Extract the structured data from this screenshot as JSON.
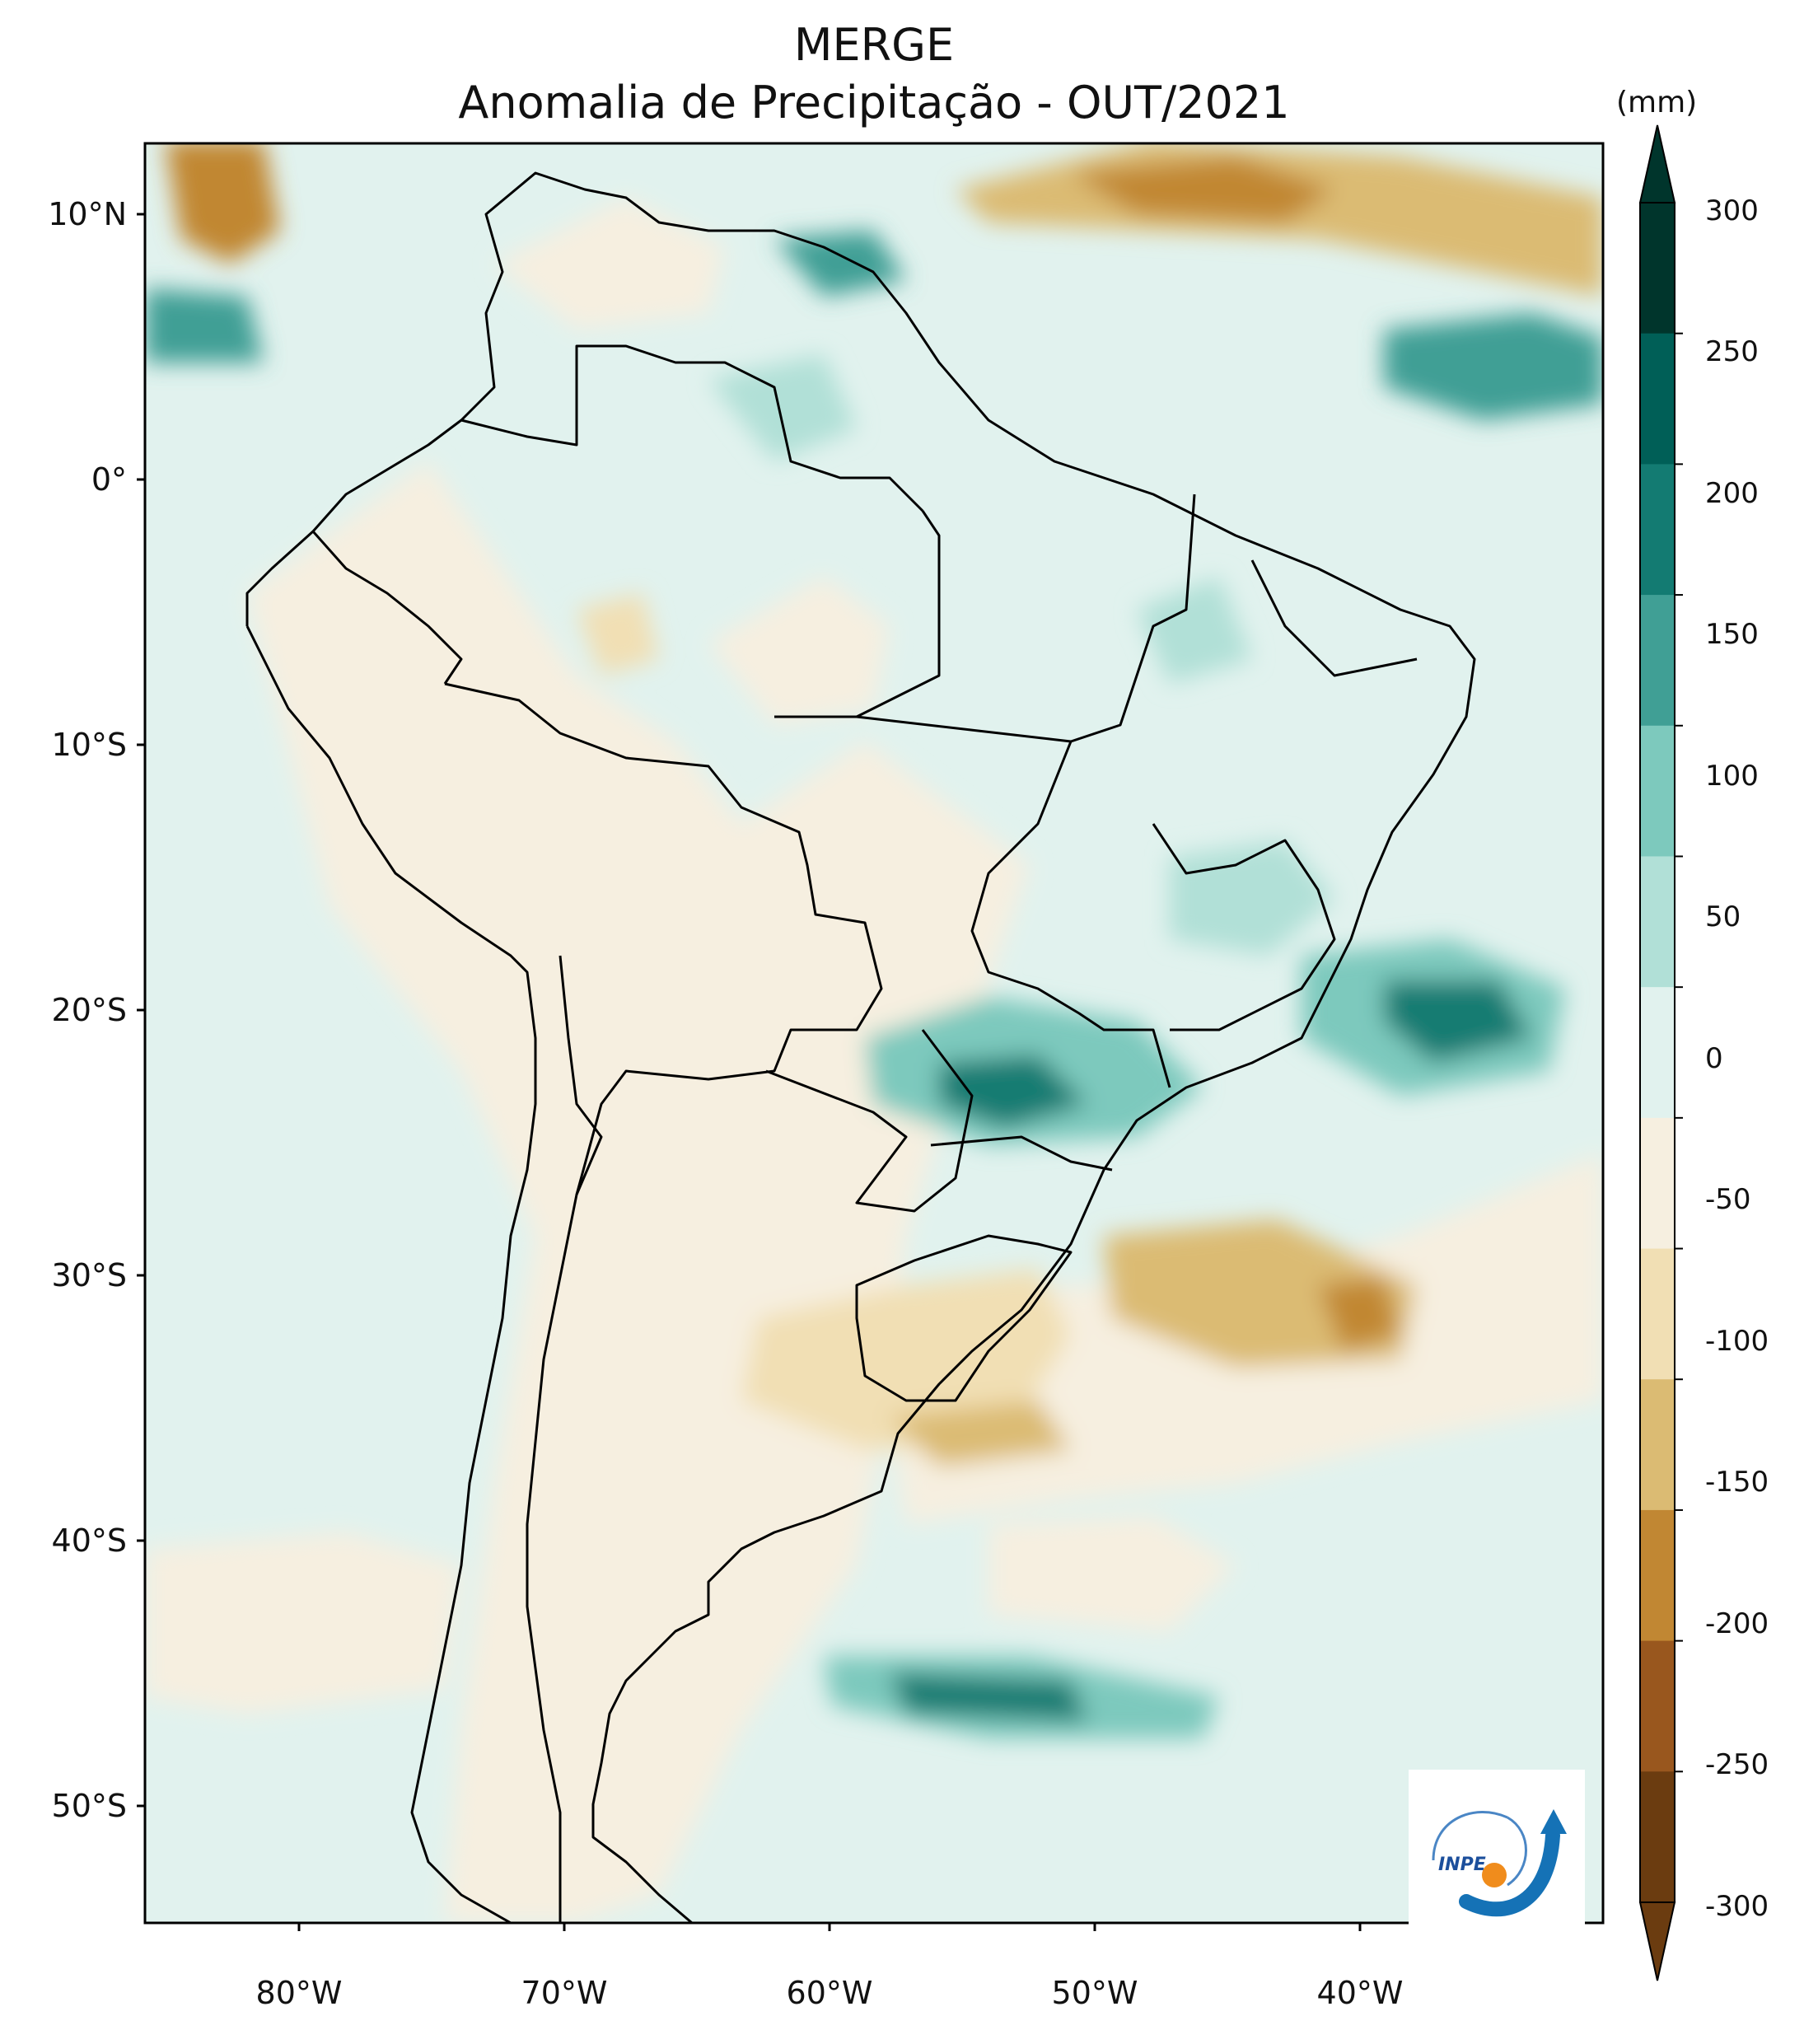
{
  "title": "MERGE",
  "subtitle": "Anomalia de Precipitação - OUT/2021",
  "colorbar": {
    "unit": "(mm)",
    "ticks": [
      "300",
      "250",
      "200",
      "150",
      "100",
      "50",
      "0",
      "-50",
      "-100",
      "-150",
      "-200",
      "-250",
      "-300"
    ],
    "colors": [
      "#00352c",
      "#005f57",
      "#137b72",
      "#409f95",
      "#7dc9bd",
      "#b1e0d7",
      "#e1f2ee",
      "#f6efe0",
      "#f1dfb4",
      "#dbbb73",
      "#c18733",
      "#99571e",
      "#6b3c10"
    ]
  },
  "lat_labels": [
    "10°N",
    "0°",
    "10°S",
    "20°S",
    "30°S",
    "40°S",
    "50°S"
  ],
  "lon_labels": [
    "80°W",
    "70°W",
    "60°W",
    "50°W",
    "40°W"
  ],
  "logo": {
    "text": "INPE"
  }
}
